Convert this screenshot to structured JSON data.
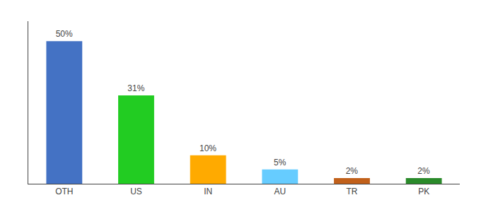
{
  "chart_data": {
    "type": "bar",
    "categories": [
      "OTH",
      "US",
      "IN",
      "AU",
      "TR",
      "PK"
    ],
    "values": [
      50,
      31,
      10,
      5,
      2,
      2
    ],
    "value_labels": [
      "50%",
      "31%",
      "10%",
      "5%",
      "2%",
      "2%"
    ],
    "colors": [
      "#4472c4",
      "#22cc22",
      "#ffaa00",
      "#66ccff",
      "#c1601a",
      "#2a8a2a"
    ],
    "ylim": [
      0,
      57
    ],
    "data_labels": true,
    "tick_labels": "x",
    "grid": false
  }
}
